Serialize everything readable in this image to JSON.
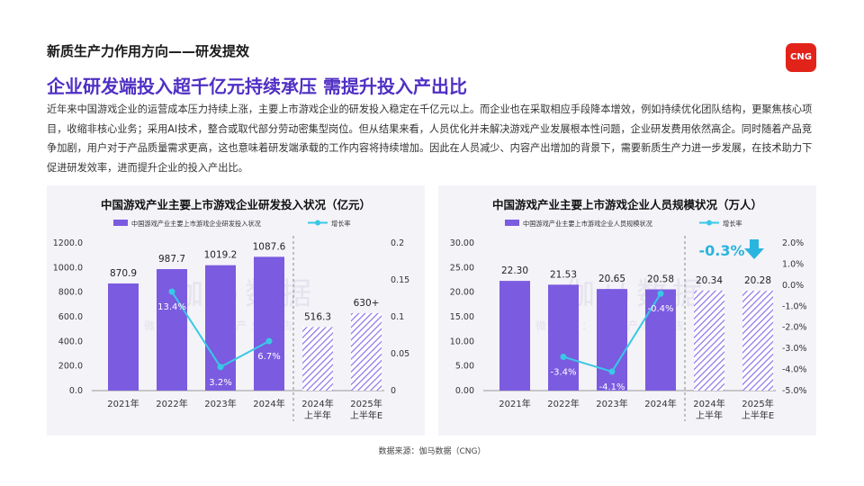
{
  "header": {
    "section_title": "新质生产力作用方向——研发提效",
    "headline": "企业研发端投入超千亿元持续承压  需提升投入产出比",
    "body": "近年来中国游戏企业的运营成本压力持续上涨，主要上市游戏企业的研发投入稳定在千亿元以上。而企业也在采取相应手段降本增效，例如持续优化团队结构，更聚焦核心项目，收缩非核心业务；采用AI技术，整合或取代部分劳动密集型岗位。但从结果来看，人员优化并未解决游戏产业发展根本性问题，企业研发费用依然高企。同时随着产品竞争加剧，用户对于产品质量需求更高，这也意味着研发端承载的工作内容将持续增加。因此在人员减少、内容产出增加的背景下，需要新质生产力进一步发展，在技术助力下促进研发效率，进而提升企业的投入产出比。",
    "logo_text": "CNG"
  },
  "footer": {
    "source": "数据来源：伽马数据（CNG）"
  },
  "watermark": {
    "main": "伽马数据",
    "sub": "微信号：游戏产业报告"
  },
  "colors": {
    "bar": "#7b5be0",
    "line": "#39c8e6",
    "hatch": "#8d72e8",
    "headline": "#4f2fc4",
    "arrow": "#2ab4de"
  },
  "chart_data": [
    {
      "type": "bar",
      "title": "中国游戏产业主要上市游戏企业研发投入状况（亿元）",
      "categories": [
        "2021年",
        "2022年",
        "2023年",
        "2024年",
        "2024年上半年",
        "2025年上半年E"
      ],
      "category_lines": [
        [
          "2021年"
        ],
        [
          "2022年"
        ],
        [
          "2023年"
        ],
        [
          "2024年"
        ],
        [
          "2024年",
          "上半年"
        ],
        [
          "2025年",
          "上半年E"
        ]
      ],
      "series": [
        {
          "name": "中国游戏产业主要上市游戏企业研发投入状况",
          "type": "bar",
          "axis": "left",
          "values": [
            870.9,
            987.7,
            1019.2,
            1087.6,
            516.3,
            630
          ],
          "labels": [
            "870.9",
            "987.7",
            "1019.2",
            "1087.6",
            "516.3",
            "630+"
          ],
          "hatched": [
            false,
            false,
            false,
            false,
            true,
            true
          ]
        },
        {
          "name": "增长率",
          "type": "line",
          "axis": "right",
          "values": [
            null,
            0.134,
            0.032,
            0.067,
            null,
            null
          ],
          "labels": [
            "",
            "13.4%",
            "3.2%",
            "6.7%",
            "",
            ""
          ]
        }
      ],
      "ylim": [
        0,
        1200
      ],
      "yticks": [
        "0.0",
        "200.0",
        "400.0",
        "600.0",
        "800.0",
        "1000.0",
        "1200.0"
      ],
      "y2lim": [
        0,
        0.2
      ],
      "y2ticks": [
        "0",
        "0.05",
        "0.1",
        "0.15",
        "0.2"
      ],
      "annotation": null
    },
    {
      "type": "bar",
      "title": "中国游戏产业主要上市游戏企业人员规模状况（万人）",
      "categories": [
        "2021年",
        "2022年",
        "2023年",
        "2024年",
        "2024年上半年",
        "2025年上半年E"
      ],
      "category_lines": [
        [
          "2021年"
        ],
        [
          "2022年"
        ],
        [
          "2023年"
        ],
        [
          "2024年"
        ],
        [
          "2024年",
          "上半年"
        ],
        [
          "2025年",
          "上半年E"
        ]
      ],
      "series": [
        {
          "name": "中国游戏产业主要上市游戏企业人员规模状况",
          "type": "bar",
          "axis": "left",
          "values": [
            22.3,
            21.53,
            20.65,
            20.58,
            20.34,
            20.28
          ],
          "labels": [
            "22.30",
            "21.53",
            "20.65",
            "20.58",
            "20.34",
            "20.28"
          ],
          "hatched": [
            false,
            false,
            false,
            false,
            true,
            true
          ]
        },
        {
          "name": "增长率",
          "type": "line",
          "axis": "right",
          "values": [
            null,
            -0.034,
            -0.041,
            -0.004,
            null,
            null
          ],
          "labels": [
            "",
            "-3.4%",
            "-4.1%",
            "-0.4%",
            "",
            ""
          ]
        }
      ],
      "ylim": [
        0,
        30
      ],
      "yticks": [
        "0.00",
        "5.00",
        "10.00",
        "15.00",
        "20.00",
        "25.00",
        "30.00"
      ],
      "y2lim": [
        -0.05,
        0.02
      ],
      "y2ticks": [
        "-5.0%",
        "-4.0%",
        "-3.0%",
        "-2.0%",
        "-1.0%",
        "0.0%",
        "1.0%",
        "2.0%"
      ],
      "annotation": {
        "text": "-0.3%",
        "value": -0.003
      }
    }
  ]
}
